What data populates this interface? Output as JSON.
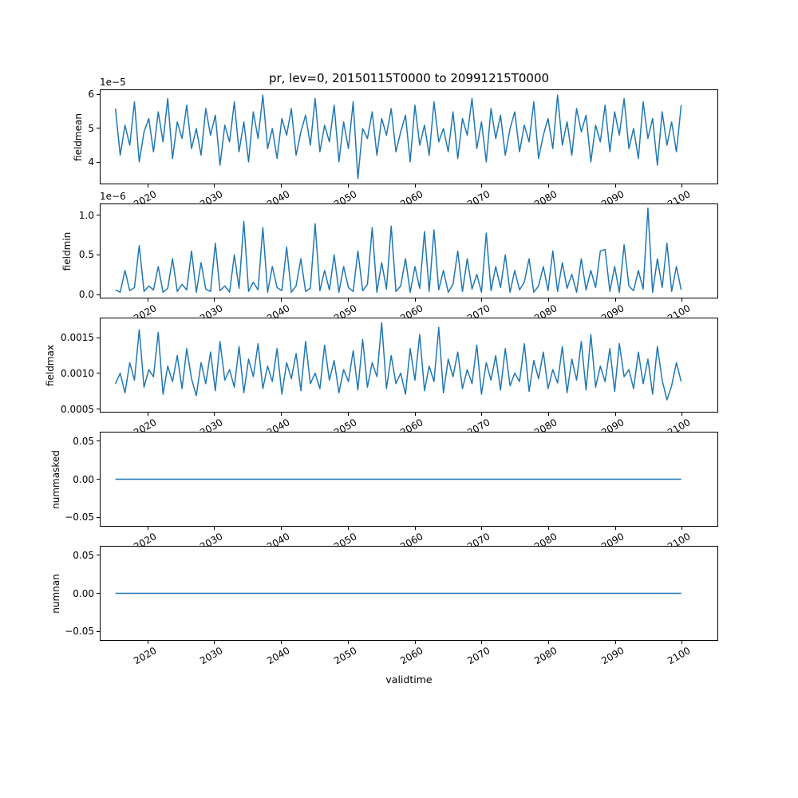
{
  "figure": {
    "title": "pr, lev=0, 20150115T0000 to 20991215T0000",
    "xlabel": "validtime",
    "line_color": "#1f77b4",
    "background": "#ffffff",
    "text_color": "#000000"
  },
  "chart_data": {
    "type": "line",
    "title": "pr, lev=0, 20150115T0000 to 20991215T0000",
    "xlabel": "validtime",
    "legend": "none",
    "grid": false,
    "x_range": [
      2015.04,
      2099.96
    ],
    "xlim": [
      2012.8,
      2105.4
    ],
    "x_ticks": [
      2020,
      2030,
      2040,
      2050,
      2060,
      2070,
      2080,
      2090,
      2100
    ],
    "subplots": [
      {
        "name": "fieldmean",
        "ylabel": "fieldmean",
        "offset_text": "1e−5",
        "value_scale": 1e-05,
        "ylim": [
          3.35,
          6.15
        ],
        "y_ticks": [
          {
            "v": 4,
            "label": "4"
          },
          {
            "v": 5,
            "label": "5"
          },
          {
            "v": 6,
            "label": "6"
          }
        ],
        "values": [
          5.6,
          4.2,
          5.1,
          4.5,
          5.8,
          4.0,
          4.9,
          5.3,
          4.3,
          5.5,
          4.6,
          5.9,
          4.1,
          5.2,
          4.7,
          5.7,
          4.4,
          5.0,
          4.2,
          5.6,
          4.8,
          5.4,
          3.9,
          5.1,
          4.6,
          5.8,
          4.3,
          5.2,
          4.0,
          5.5,
          4.7,
          6.0,
          4.4,
          5.0,
          4.1,
          5.3,
          4.8,
          5.6,
          4.2,
          4.9,
          5.4,
          4.5,
          5.9,
          4.3,
          5.1,
          4.6,
          5.7,
          4.0,
          5.2,
          4.4,
          5.8,
          3.5,
          5.0,
          4.7,
          5.5,
          4.2,
          5.3,
          4.8,
          5.6,
          4.3,
          4.9,
          5.4,
          4.0,
          5.7,
          4.5,
          5.1,
          4.2,
          5.8,
          4.6,
          5.0,
          4.3,
          5.5,
          4.1,
          5.3,
          4.8,
          5.9,
          4.4,
          5.2,
          4.0,
          5.6,
          4.7,
          5.4,
          4.2,
          5.0,
          5.5,
          4.3,
          5.1,
          4.6,
          5.8,
          4.1,
          4.8,
          5.3,
          4.4,
          6.0,
          4.5,
          5.2,
          4.2,
          5.6,
          4.9,
          5.4,
          4.0,
          5.1,
          4.6,
          5.7,
          4.3,
          5.5,
          4.8,
          5.9,
          4.4,
          5.0,
          4.1,
          5.8,
          4.7,
          5.3,
          3.9,
          5.5,
          4.5,
          5.2,
          4.3,
          5.7
        ]
      },
      {
        "name": "fieldmin",
        "ylabel": "fieldmin",
        "offset_text": "1e−6",
        "value_scale": 1e-06,
        "ylim": [
          -0.05,
          1.15
        ],
        "y_ticks": [
          {
            "v": 0.0,
            "label": "0.0"
          },
          {
            "v": 0.5,
            "label": "0.5"
          },
          {
            "v": 1.0,
            "label": "1.0"
          }
        ],
        "values": [
          0.05,
          0.02,
          0.3,
          0.04,
          0.08,
          0.62,
          0.03,
          0.1,
          0.05,
          0.35,
          0.02,
          0.07,
          0.45,
          0.03,
          0.12,
          0.05,
          0.55,
          0.02,
          0.4,
          0.06,
          0.03,
          0.65,
          0.04,
          0.1,
          0.02,
          0.5,
          0.07,
          0.93,
          0.03,
          0.15,
          0.05,
          0.85,
          0.02,
          0.35,
          0.08,
          0.04,
          0.6,
          0.02,
          0.1,
          0.45,
          0.03,
          0.07,
          0.9,
          0.04,
          0.3,
          0.05,
          0.5,
          0.02,
          0.35,
          0.08,
          0.03,
          0.55,
          0.04,
          0.12,
          0.85,
          0.02,
          0.4,
          0.06,
          0.87,
          0.03,
          0.1,
          0.45,
          0.02,
          0.35,
          0.07,
          0.8,
          0.03,
          0.82,
          0.05,
          0.3,
          0.02,
          0.12,
          0.55,
          0.03,
          0.45,
          0.06,
          0.25,
          0.02,
          0.78,
          0.04,
          0.35,
          0.08,
          0.5,
          0.02,
          0.3,
          0.05,
          0.15,
          0.45,
          0.02,
          0.1,
          0.35,
          0.04,
          0.55,
          0.03,
          0.4,
          0.07,
          0.25,
          0.02,
          0.45,
          0.05,
          0.3,
          0.08,
          0.55,
          0.57,
          0.03,
          0.35,
          0.02,
          0.63,
          0.1,
          0.04,
          0.3,
          0.06,
          1.1,
          0.02,
          0.45,
          0.08,
          0.65,
          0.03,
          0.35,
          0.05
        ]
      },
      {
        "name": "fieldmax",
        "ylabel": "fieldmax",
        "offset_text": "",
        "value_scale": 0.001,
        "ylim": [
          0.45,
          1.78
        ],
        "y_ticks": [
          {
            "v": 0.5,
            "label": "0.0005"
          },
          {
            "v": 1.0,
            "label": "0.0010"
          },
          {
            "v": 1.5,
            "label": "0.0015"
          }
        ],
        "values": [
          0.85,
          1.0,
          0.72,
          1.15,
          0.9,
          1.62,
          0.8,
          1.05,
          0.95,
          1.58,
          0.7,
          1.1,
          0.88,
          1.25,
          0.78,
          1.35,
          0.92,
          0.68,
          1.15,
          0.85,
          1.3,
          0.75,
          1.45,
          0.9,
          1.05,
          0.8,
          1.38,
          0.72,
          1.2,
          0.95,
          1.42,
          0.78,
          1.1,
          0.88,
          1.35,
          0.7,
          1.15,
          0.92,
          1.28,
          0.75,
          1.45,
          0.85,
          1.0,
          0.78,
          1.4,
          0.9,
          1.18,
          0.72,
          1.05,
          0.88,
          1.32,
          0.76,
          1.48,
          0.8,
          1.15,
          0.95,
          1.72,
          0.78,
          1.25,
          0.85,
          1.0,
          0.7,
          1.35,
          0.9,
          1.55,
          0.75,
          1.1,
          0.88,
          1.65,
          0.72,
          1.2,
          0.95,
          1.3,
          0.78,
          1.05,
          0.85,
          1.4,
          0.7,
          1.15,
          0.9,
          1.25,
          0.76,
          1.35,
          0.82,
          1.0,
          0.88,
          1.42,
          0.74,
          1.18,
          0.92,
          1.3,
          0.78,
          1.05,
          0.86,
          1.38,
          0.72,
          1.2,
          0.9,
          1.45,
          0.76,
          1.55,
          0.8,
          1.1,
          0.88,
          1.35,
          0.74,
          1.42,
          0.95,
          1.05,
          0.78,
          1.3,
          0.85,
          1.2,
          0.7,
          1.38,
          0.9,
          0.62,
          0.82,
          1.15,
          0.88
        ]
      },
      {
        "name": "nummasked",
        "ylabel": "nummasked",
        "offset_text": "",
        "value_scale": 1,
        "ylim": [
          -0.062,
          0.062
        ],
        "y_ticks": [
          {
            "v": 0.05,
            "label": "0.05"
          },
          {
            "v": 0.0,
            "label": "0.00"
          },
          {
            "v": -0.05,
            "label": "−0.05"
          }
        ],
        "values": [
          0,
          0
        ]
      },
      {
        "name": "numnan",
        "ylabel": "numnan",
        "offset_text": "",
        "value_scale": 1,
        "ylim": [
          -0.062,
          0.062
        ],
        "y_ticks": [
          {
            "v": 0.05,
            "label": "0.05"
          },
          {
            "v": 0.0,
            "label": "0.00"
          },
          {
            "v": -0.05,
            "label": "−0.05"
          }
        ],
        "values": [
          0,
          0
        ]
      }
    ]
  }
}
